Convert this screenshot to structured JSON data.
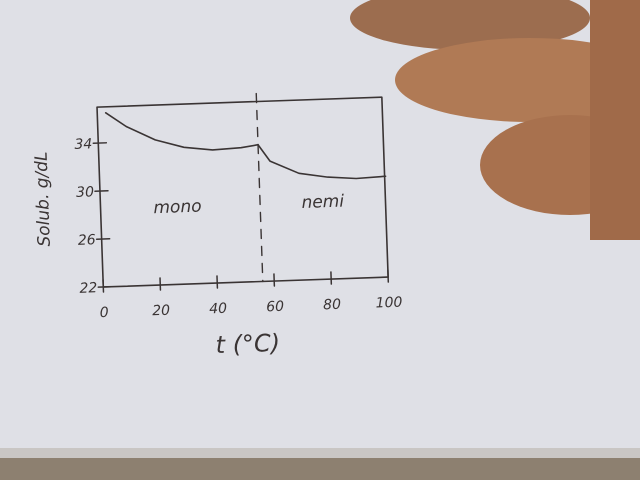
{
  "chart_data": {
    "type": "line",
    "xlabel": "t (°C)",
    "ylabel": "Solub. g/dL",
    "xlim": [
      0,
      100
    ],
    "ylim": [
      22,
      37
    ],
    "x_ticks": [
      "0",
      "20",
      "40",
      "60",
      "80",
      "100"
    ],
    "x_tick_values": [
      0,
      20,
      40,
      60,
      80,
      100
    ],
    "y_ticks": [
      "22",
      "26",
      "30",
      "34"
    ],
    "y_tick_values": [
      22,
      26,
      30,
      34
    ],
    "grid": false,
    "transition_x": 56,
    "regions": [
      {
        "label": "mono",
        "x": 27,
        "y": 28
      },
      {
        "label": "nemi",
        "x": 78,
        "y": 28
      }
    ],
    "series": [
      {
        "x": [
          3,
          10,
          20,
          30,
          40,
          50,
          56
        ],
        "y": [
          36.5,
          35.3,
          34.1,
          33.4,
          33.1,
          33.2,
          33.4
        ]
      },
      {
        "x": [
          56,
          60,
          70,
          80,
          90,
          100
        ],
        "y": [
          33.4,
          32.0,
          30.9,
          30.5,
          30.3,
          30.4
        ]
      }
    ]
  },
  "colors": {
    "paper": "#e4e6ef",
    "ink": "#3a3434",
    "skin": "#b07a55"
  }
}
